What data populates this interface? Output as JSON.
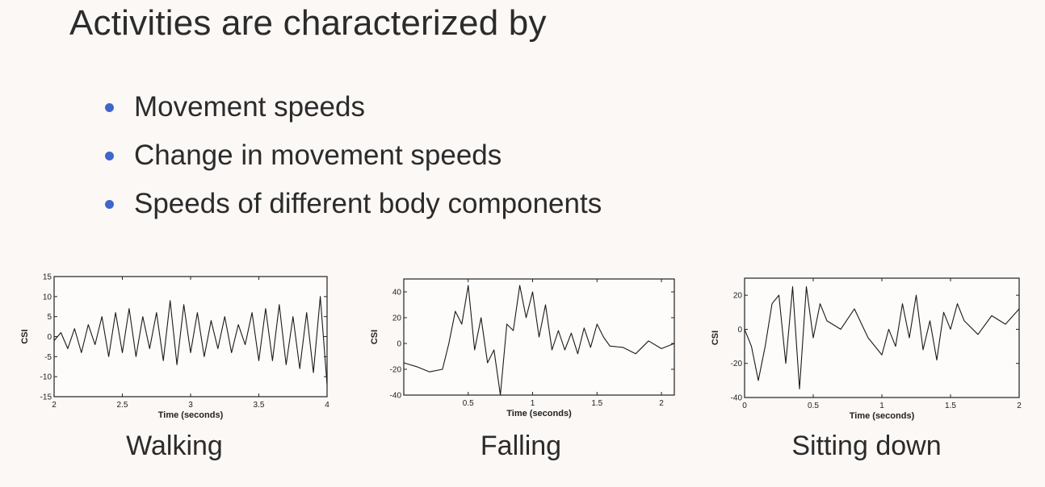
{
  "title": "Activities are characterized by",
  "bullets": [
    "Movement speeds",
    "Change in movement speeds",
    "Speeds of different body components"
  ],
  "colors": {
    "bullet": "#3f67c9",
    "text": "#2b2b2b",
    "line": "#1a1a1a",
    "background": "#fbf8f6"
  },
  "chart_data": [
    {
      "type": "line",
      "caption": "Walking",
      "xlabel": "Time (seconds)",
      "ylabel": "CSI",
      "xlim": [
        2,
        4
      ],
      "ylim": [
        -15,
        15
      ],
      "xticks": [
        2,
        2.5,
        3,
        3.5,
        4
      ],
      "xtick_labels": [
        "2",
        "2.5",
        "3",
        "3.5",
        "4"
      ],
      "yticks": [
        -15,
        -10,
        -5,
        0,
        5,
        10,
        15
      ],
      "ytick_labels": [
        "-15",
        "-10",
        "-5",
        "0",
        "5",
        "10",
        "15"
      ],
      "grid": false,
      "x": [
        2.0,
        2.05,
        2.1,
        2.15,
        2.2,
        2.25,
        2.3,
        2.35,
        2.4,
        2.45,
        2.5,
        2.55,
        2.6,
        2.65,
        2.7,
        2.75,
        2.8,
        2.85,
        2.9,
        2.95,
        3.0,
        3.05,
        3.1,
        3.15,
        3.2,
        3.25,
        3.3,
        3.35,
        3.4,
        3.45,
        3.5,
        3.55,
        3.6,
        3.65,
        3.7,
        3.75,
        3.8,
        3.85,
        3.9,
        3.95,
        4.0
      ],
      "y": [
        -1,
        1,
        -3,
        2,
        -4,
        3,
        -2,
        5,
        -5,
        6,
        -4,
        7,
        -5,
        5,
        -3,
        6,
        -6,
        9,
        -7,
        8,
        -4,
        6,
        -5,
        4,
        -3,
        5,
        -4,
        3,
        -2,
        6,
        -6,
        7,
        -6,
        8,
        -7,
        5,
        -8,
        6,
        -9,
        10,
        -12
      ]
    },
    {
      "type": "line",
      "caption": "Falling",
      "xlabel": "Time (seconds)",
      "ylabel": "CSI",
      "xlim": [
        0,
        2.1
      ],
      "ylim": [
        -40,
        50
      ],
      "xticks": [
        0.5,
        1,
        1.5,
        2
      ],
      "xtick_labels": [
        "0.5",
        "1",
        "1.5",
        "2"
      ],
      "yticks": [
        -40,
        -20,
        0,
        20,
        40
      ],
      "ytick_labels": [
        "-40",
        "-20",
        "0",
        "20",
        "40"
      ],
      "grid": false,
      "x": [
        0.0,
        0.1,
        0.2,
        0.3,
        0.35,
        0.4,
        0.45,
        0.5,
        0.55,
        0.6,
        0.65,
        0.7,
        0.75,
        0.8,
        0.85,
        0.9,
        0.95,
        1.0,
        1.05,
        1.1,
        1.15,
        1.2,
        1.25,
        1.3,
        1.35,
        1.4,
        1.45,
        1.5,
        1.55,
        1.6,
        1.7,
        1.8,
        1.9,
        2.0,
        2.1
      ],
      "y": [
        -15,
        -18,
        -22,
        -20,
        0,
        25,
        15,
        45,
        -5,
        20,
        -15,
        -5,
        -40,
        15,
        10,
        45,
        20,
        40,
        5,
        30,
        -5,
        10,
        -5,
        8,
        -8,
        12,
        -3,
        15,
        5,
        -2,
        -3,
        -8,
        2,
        -4,
        0
      ]
    },
    {
      "type": "line",
      "caption": "Sitting down",
      "xlabel": "Time (seconds)",
      "ylabel": "CSI",
      "xlim": [
        0,
        2
      ],
      "ylim": [
        -40,
        30
      ],
      "xticks": [
        0,
        0.5,
        1,
        1.5,
        2
      ],
      "xtick_labels": [
        "0",
        "0.5",
        "1",
        "1.5",
        "2"
      ],
      "yticks": [
        -40,
        -20,
        0,
        20
      ],
      "ytick_labels": [
        "-40",
        "-20",
        "0",
        "20"
      ],
      "grid": false,
      "x": [
        0.0,
        0.05,
        0.1,
        0.15,
        0.2,
        0.25,
        0.3,
        0.35,
        0.4,
        0.45,
        0.5,
        0.55,
        0.6,
        0.7,
        0.8,
        0.9,
        1.0,
        1.05,
        1.1,
        1.15,
        1.2,
        1.25,
        1.3,
        1.35,
        1.4,
        1.45,
        1.5,
        1.55,
        1.6,
        1.7,
        1.8,
        1.9,
        2.0
      ],
      "y": [
        0,
        -10,
        -30,
        -10,
        15,
        20,
        -20,
        25,
        -35,
        25,
        -5,
        15,
        5,
        0,
        12,
        -5,
        -15,
        0,
        -10,
        15,
        -5,
        20,
        -12,
        5,
        -18,
        10,
        0,
        15,
        5,
        -3,
        8,
        3,
        12
      ]
    }
  ]
}
